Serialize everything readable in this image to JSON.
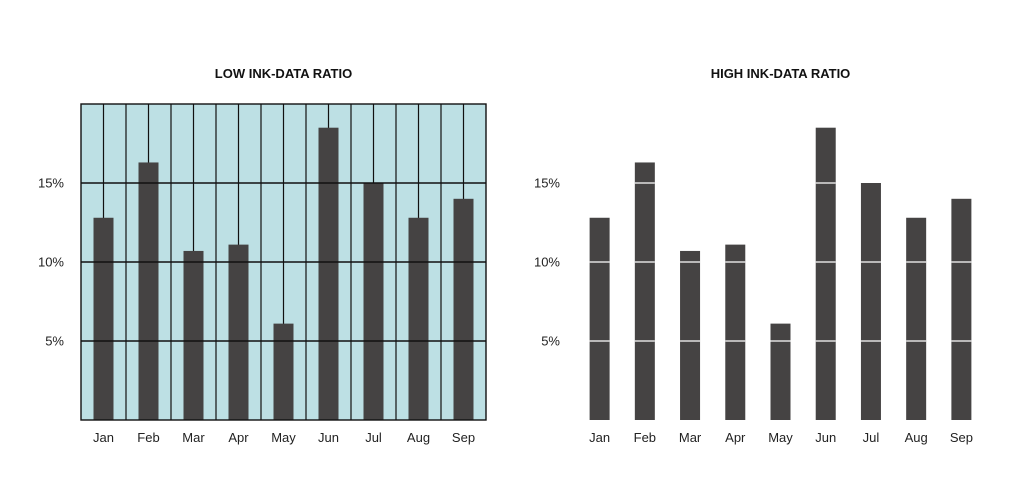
{
  "chart_data": [
    {
      "type": "bar",
      "title": "LOW INK-DATA RATIO",
      "categories": [
        "Jan",
        "Feb",
        "Mar",
        "Apr",
        "May",
        "Jun",
        "Jul",
        "Aug",
        "Sep"
      ],
      "values": [
        12.8,
        16.3,
        10.7,
        11.1,
        6.1,
        18.5,
        15.0,
        12.8,
        14.0
      ],
      "ylim": [
        0,
        20
      ],
      "y_ticks": [
        5,
        10,
        15
      ],
      "y_tick_labels": [
        "5%",
        "10%",
        "15%"
      ],
      "grid": "on (vertical and horizontal lines, framed plot area)",
      "colors": {
        "background": "#bde0e4",
        "bar": "#454343",
        "grid": "#111111"
      }
    },
    {
      "type": "bar",
      "title": "HIGH INK-DATA RATIO",
      "categories": [
        "Jan",
        "Feb",
        "Mar",
        "Apr",
        "May",
        "Jun",
        "Jul",
        "Aug",
        "Sep"
      ],
      "values": [
        12.8,
        16.3,
        10.7,
        11.1,
        6.1,
        18.5,
        15.0,
        12.8,
        14.0
      ],
      "ylim": [
        0,
        20
      ],
      "y_ticks": [
        5,
        10,
        15
      ],
      "y_tick_labels": [
        "5%",
        "10%",
        "15%"
      ],
      "grid": "white tick lines inside bars only",
      "colors": {
        "background": "#ffffff",
        "bar": "#454343",
        "grid": "#ffffff"
      }
    }
  ]
}
